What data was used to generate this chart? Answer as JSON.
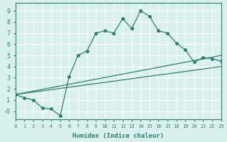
{
  "line1_x": [
    0,
    1,
    2,
    3,
    4,
    5,
    6,
    7,
    8,
    9,
    10,
    11,
    12,
    13,
    14,
    15,
    16,
    17,
    18,
    19,
    20,
    21,
    22,
    23
  ],
  "line1_y": [
    1.5,
    1.2,
    1.0,
    0.3,
    0.2,
    -0.4,
    3.1,
    5.0,
    5.4,
    7.0,
    7.2,
    7.0,
    8.3,
    7.4,
    9.0,
    8.5,
    7.2,
    7.0,
    6.1,
    5.5,
    4.4,
    4.8,
    4.7,
    4.5
  ],
  "line2_x": [
    0,
    23
  ],
  "line2_y": [
    1.5,
    5.0
  ],
  "line3_x": [
    0,
    23
  ],
  "line3_y": [
    1.5,
    4.0
  ],
  "color": "#2e7d6e",
  "bg_color": "#d8f0ee",
  "grid_color": "#ffffff",
  "xlabel": "Humidex (Indice chaleur)",
  "ylim": [
    -0.7,
    9.7
  ],
  "xlim": [
    0,
    23
  ],
  "yticks": [
    0,
    1,
    2,
    3,
    4,
    5,
    6,
    7,
    8,
    9
  ],
  "xticks": [
    0,
    1,
    2,
    3,
    4,
    5,
    6,
    7,
    8,
    9,
    10,
    11,
    12,
    13,
    14,
    15,
    16,
    17,
    18,
    19,
    20,
    21,
    22,
    23
  ]
}
